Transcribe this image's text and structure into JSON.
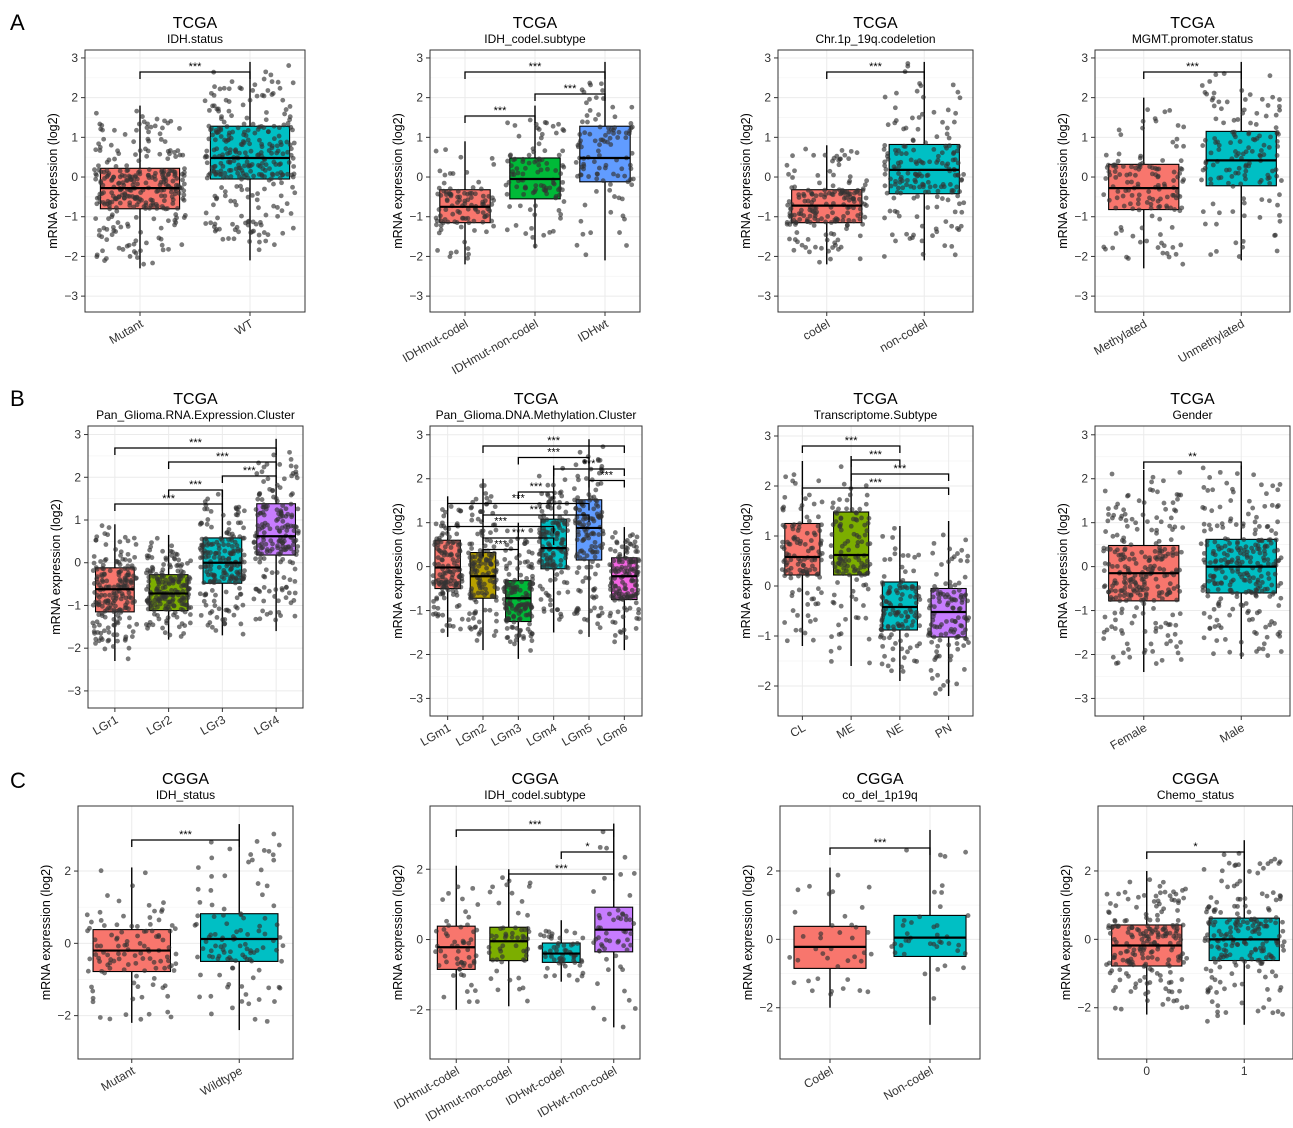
{
  "figure": {
    "panel_letters": [
      "A",
      "B",
      "C"
    ]
  },
  "colors": {
    "red": "#f8766d",
    "teal": "#00bfc4",
    "green": "#00ba38",
    "blue": "#619cff",
    "olive": "#7cae00",
    "purple": "#c77cff",
    "magenta": "#f564e3",
    "point": "#333333",
    "grid": "#ebebeb"
  },
  "chart_data": [
    {
      "type": "box",
      "title": "TCGA",
      "subtitle": "IDH.status",
      "ylabel": "mRNA expression (log2)",
      "ylim": [
        -3.4,
        3.2
      ],
      "yticks": [
        -3,
        -2,
        -1,
        0,
        1,
        2,
        3
      ],
      "categories": [
        "Mutant",
        "WT"
      ],
      "colors": [
        "#f8766d",
        "#00bfc4"
      ],
      "boxes": [
        {
          "q1": -0.8,
          "median": -0.28,
          "q3": 0.22,
          "min": -2.3,
          "max": 1.8
        },
        {
          "q1": -0.05,
          "median": 0.48,
          "q3": 1.28,
          "min": -2.1,
          "max": 2.9
        }
      ],
      "brackets": [
        {
          "from": 0,
          "to": 1,
          "label": "***"
        }
      ]
    },
    {
      "type": "box",
      "title": "TCGA",
      "subtitle": "IDH_codel.subtype",
      "ylabel": "mRNA expression (log2)",
      "ylim": [
        -3.4,
        3.2
      ],
      "yticks": [
        -3,
        -2,
        -1,
        0,
        1,
        2,
        3
      ],
      "categories": [
        "IDHmut-codel",
        "IDHmut-non-codel",
        "IDHwt"
      ],
      "colors": [
        "#f8766d",
        "#00ba38",
        "#619cff"
      ],
      "boxes": [
        {
          "q1": -1.15,
          "median": -0.75,
          "q3": -0.32,
          "min": -2.2,
          "max": 0.9
        },
        {
          "q1": -0.55,
          "median": -0.05,
          "q3": 0.48,
          "min": -1.8,
          "max": 1.8
        },
        {
          "q1": -0.12,
          "median": 0.48,
          "q3": 1.28,
          "min": -2.1,
          "max": 2.9
        }
      ],
      "brackets": [
        {
          "from": 0,
          "to": 1,
          "label": "***"
        },
        {
          "from": 1,
          "to": 2,
          "label": "***"
        },
        {
          "from": 0,
          "to": 2,
          "label": "***"
        }
      ]
    },
    {
      "type": "box",
      "title": "TCGA",
      "subtitle": "Chr.1p_19q.codeletion",
      "ylabel": "mRNA expression (log2)",
      "ylim": [
        -3.4,
        3.2
      ],
      "yticks": [
        -3,
        -2,
        -1,
        0,
        1,
        2,
        3
      ],
      "categories": [
        "codel",
        "non-codel"
      ],
      "colors": [
        "#f8766d",
        "#00bfc4"
      ],
      "boxes": [
        {
          "q1": -1.15,
          "median": -0.72,
          "q3": -0.32,
          "min": -2.2,
          "max": 0.8
        },
        {
          "q1": -0.42,
          "median": 0.18,
          "q3": 0.82,
          "min": -2.1,
          "max": 2.9
        }
      ],
      "brackets": [
        {
          "from": 0,
          "to": 1,
          "label": "***"
        }
      ]
    },
    {
      "type": "box",
      "title": "TCGA",
      "subtitle": "MGMT.promoter.status",
      "ylabel": "mRNA expression (log2)",
      "ylim": [
        -3.4,
        3.2
      ],
      "yticks": [
        -3,
        -2,
        -1,
        0,
        1,
        2,
        3
      ],
      "categories": [
        "Methylated",
        "Unmethylated"
      ],
      "colors": [
        "#f8766d",
        "#00bfc4"
      ],
      "boxes": [
        {
          "q1": -0.82,
          "median": -0.28,
          "q3": 0.32,
          "min": -2.3,
          "max": 2.0
        },
        {
          "q1": -0.22,
          "median": 0.42,
          "q3": 1.15,
          "min": -2.1,
          "max": 2.9
        }
      ],
      "brackets": [
        {
          "from": 0,
          "to": 1,
          "label": "***"
        }
      ]
    },
    {
      "type": "box",
      "title": "TCGA",
      "subtitle": "Pan_Glioma.RNA.Expression.Cluster",
      "ylabel": "mRNA expression (log2)",
      "ylim": [
        -3.4,
        3.2
      ],
      "yticks": [
        -3,
        -2,
        -1,
        0,
        1,
        2,
        3
      ],
      "categories": [
        "LGr1",
        "LGr2",
        "LGr3",
        "LGr4"
      ],
      "colors": [
        "#f8766d",
        "#7cae00",
        "#00bfc4",
        "#c77cff"
      ],
      "boxes": [
        {
          "q1": -1.15,
          "median": -0.62,
          "q3": -0.12,
          "min": -2.3,
          "max": 0.9
        },
        {
          "q1": -1.12,
          "median": -0.72,
          "q3": -0.28,
          "min": -1.8,
          "max": 0.65
        },
        {
          "q1": -0.48,
          "median": 0.0,
          "q3": 0.58,
          "min": -1.7,
          "max": 1.7
        },
        {
          "q1": 0.18,
          "median": 0.62,
          "q3": 1.38,
          "min": -1.6,
          "max": 2.9
        }
      ],
      "brackets": [
        {
          "from": 0,
          "to": 2,
          "label": "***"
        },
        {
          "from": 1,
          "to": 2,
          "label": "***"
        },
        {
          "from": 2,
          "to": 3,
          "label": "***"
        },
        {
          "from": 1,
          "to": 3,
          "label": "***"
        },
        {
          "from": 0,
          "to": 3,
          "label": "***"
        }
      ]
    },
    {
      "type": "box",
      "title": "TCGA",
      "subtitle": "Pan_Glioma.DNA.Methylation.Cluster",
      "ylabel": "mRNA expression (log2)",
      "ylim": [
        -3.4,
        3.2
      ],
      "yticks": [
        -3,
        -2,
        -1,
        0,
        1,
        2,
        3
      ],
      "categories": [
        "LGm1",
        "LGm2",
        "LGm3",
        "LGm4",
        "LGm5",
        "LGm6"
      ],
      "colors": [
        "#f8766d",
        "#b79f00",
        "#00ba38",
        "#00bfc4",
        "#619cff",
        "#f564e3"
      ],
      "boxes": [
        {
          "q1": -0.5,
          "median": -0.02,
          "q3": 0.6,
          "min": -1.6,
          "max": 1.6
        },
        {
          "q1": -0.72,
          "median": -0.22,
          "q3": 0.32,
          "min": -1.9,
          "max": 2.0
        },
        {
          "q1": -1.25,
          "median": -0.72,
          "q3": -0.32,
          "min": -2.1,
          "max": 1.0
        },
        {
          "q1": -0.05,
          "median": 0.42,
          "q3": 1.08,
          "min": -1.5,
          "max": 2.3
        },
        {
          "q1": 0.15,
          "median": 0.88,
          "q3": 1.52,
          "min": -1.6,
          "max": 2.9
        },
        {
          "q1": -0.75,
          "median": -0.22,
          "q3": 0.2,
          "min": -1.9,
          "max": 0.9
        }
      ],
      "brackets": [
        {
          "from": 1,
          "to": 2,
          "label": "***"
        },
        {
          "from": 1,
          "to": 3,
          "label": "***"
        },
        {
          "from": 0,
          "to": 3,
          "label": "***"
        },
        {
          "from": 1,
          "to": 4,
          "label": "***"
        },
        {
          "from": 0,
          "to": 4,
          "label": "***"
        },
        {
          "from": 2,
          "to": 3,
          "label": "***"
        },
        {
          "from": 4,
          "to": 5,
          "label": "***"
        },
        {
          "from": 3,
          "to": 5,
          "label": "***"
        },
        {
          "from": 2,
          "to": 4,
          "label": "***"
        },
        {
          "from": 1,
          "to": 5,
          "label": "***"
        }
      ]
    },
    {
      "type": "box",
      "title": "TCGA",
      "subtitle": "Transcriptome.Subtype",
      "ylabel": "mRNA expression (log2)",
      "ylim": [
        -2.6,
        3.2
      ],
      "yticks": [
        -2,
        -1,
        0,
        1,
        2,
        3
      ],
      "categories": [
        "CL",
        "ME",
        "NE",
        "PN"
      ],
      "colors": [
        "#f8766d",
        "#7cae00",
        "#00bfc4",
        "#c77cff"
      ],
      "boxes": [
        {
          "q1": 0.22,
          "median": 0.58,
          "q3": 1.25,
          "min": -1.2,
          "max": 2.5
        },
        {
          "q1": 0.22,
          "median": 0.62,
          "q3": 1.48,
          "min": -1.6,
          "max": 2.6
        },
        {
          "q1": -0.88,
          "median": -0.42,
          "q3": 0.08,
          "min": -1.9,
          "max": 1.2
        },
        {
          "q1": -1.02,
          "median": -0.52,
          "q3": -0.05,
          "min": -2.2,
          "max": 1.3
        }
      ],
      "brackets": [
        {
          "from": 0,
          "to": 3,
          "label": "***"
        },
        {
          "from": 1,
          "to": 3,
          "label": "***"
        },
        {
          "from": 1,
          "to": 2,
          "label": "***"
        },
        {
          "from": 0,
          "to": 2,
          "label": "***"
        }
      ]
    },
    {
      "type": "box",
      "title": "TCGA",
      "subtitle": "Gender",
      "ylabel": "mRNA expression (log2)",
      "ylim": [
        -3.4,
        3.2
      ],
      "yticks": [
        -3,
        -2,
        -1,
        0,
        1,
        2,
        3
      ],
      "categories": [
        "Female",
        "Male"
      ],
      "colors": [
        "#f8766d",
        "#00bfc4"
      ],
      "boxes": [
        {
          "q1": -0.78,
          "median": -0.15,
          "q3": 0.48,
          "min": -2.4,
          "max": 2.2
        },
        {
          "q1": -0.6,
          "median": 0.0,
          "q3": 0.62,
          "min": -2.1,
          "max": 2.3
        }
      ],
      "brackets": [
        {
          "from": 0,
          "to": 1,
          "label": "**"
        }
      ]
    },
    {
      "type": "box",
      "title": "CGGA",
      "subtitle": "IDH_status",
      "ylabel": "mRNA expression (log2)",
      "ylim": [
        -3.2,
        3.8
      ],
      "yticks": [
        -2,
        0,
        2
      ],
      "categories": [
        "Mutant",
        "Wildtype"
      ],
      "colors": [
        "#f8766d",
        "#00bfc4"
      ],
      "boxes": [
        {
          "q1": -0.78,
          "median": -0.2,
          "q3": 0.38,
          "min": -2.2,
          "max": 2.1
        },
        {
          "q1": -0.5,
          "median": 0.12,
          "q3": 0.82,
          "min": -2.4,
          "max": 3.3
        }
      ],
      "brackets": [
        {
          "from": 0,
          "to": 1,
          "label": "***"
        }
      ]
    },
    {
      "type": "box",
      "title": "CGGA",
      "subtitle": "IDH_codel.subtype",
      "ylabel": "mRNA expression (log2)",
      "ylim": [
        -3.4,
        3.8
      ],
      "yticks": [
        -2,
        0,
        2
      ],
      "categories": [
        "IDHmut-codel",
        "IDHmut-non-codel",
        "IDHwt-codel",
        "IDHwt-non-codel"
      ],
      "colors": [
        "#f8766d",
        "#7cae00",
        "#00bfc4",
        "#c77cff"
      ],
      "boxes": [
        {
          "q1": -0.85,
          "median": -0.22,
          "q3": 0.38,
          "min": -2.0,
          "max": 2.1
        },
        {
          "q1": -0.6,
          "median": -0.05,
          "q3": 0.35,
          "min": -1.9,
          "max": 2.0
        },
        {
          "q1": -0.65,
          "median": -0.4,
          "q3": -0.1,
          "min": -1.2,
          "max": 0.55
        },
        {
          "q1": -0.35,
          "median": 0.28,
          "q3": 0.92,
          "min": -2.5,
          "max": 3.3
        }
      ],
      "brackets": [
        {
          "from": 1,
          "to": 3,
          "label": "***"
        },
        {
          "from": 2,
          "to": 3,
          "label": "*"
        },
        {
          "from": 0,
          "to": 3,
          "label": "***"
        }
      ]
    },
    {
      "type": "box",
      "title": "CGGA",
      "subtitle": "co_del_1p19q",
      "ylabel": "mRNA expression (log2)",
      "ylim": [
        -3.5,
        3.9
      ],
      "yticks": [
        -2,
        0,
        2
      ],
      "categories": [
        "Codel",
        "Non-codel"
      ],
      "colors": [
        "#f8766d",
        "#00bfc4"
      ],
      "boxes": [
        {
          "q1": -0.85,
          "median": -0.22,
          "q3": 0.38,
          "min": -2.0,
          "max": 2.1
        },
        {
          "q1": -0.5,
          "median": 0.05,
          "q3": 0.7,
          "min": -2.5,
          "max": 3.2
        }
      ],
      "brackets": [
        {
          "from": 0,
          "to": 1,
          "label": "***"
        }
      ]
    },
    {
      "type": "box",
      "title": "CGGA",
      "subtitle": "Chemo_status",
      "ylabel": "mRNA expression (log2)",
      "ylim": [
        -3.5,
        3.9
      ],
      "yticks": [
        -2,
        0,
        2
      ],
      "categories": [
        "0",
        "1"
      ],
      "colors": [
        "#f8766d",
        "#00bfc4"
      ],
      "boxes": [
        {
          "q1": -0.78,
          "median": -0.18,
          "q3": 0.42,
          "min": -2.2,
          "max": 2.0
        },
        {
          "q1": -0.62,
          "median": 0.0,
          "q3": 0.62,
          "min": -2.5,
          "max": 2.9
        }
      ],
      "brackets": [
        {
          "from": 0,
          "to": 1,
          "label": "*"
        }
      ]
    }
  ]
}
